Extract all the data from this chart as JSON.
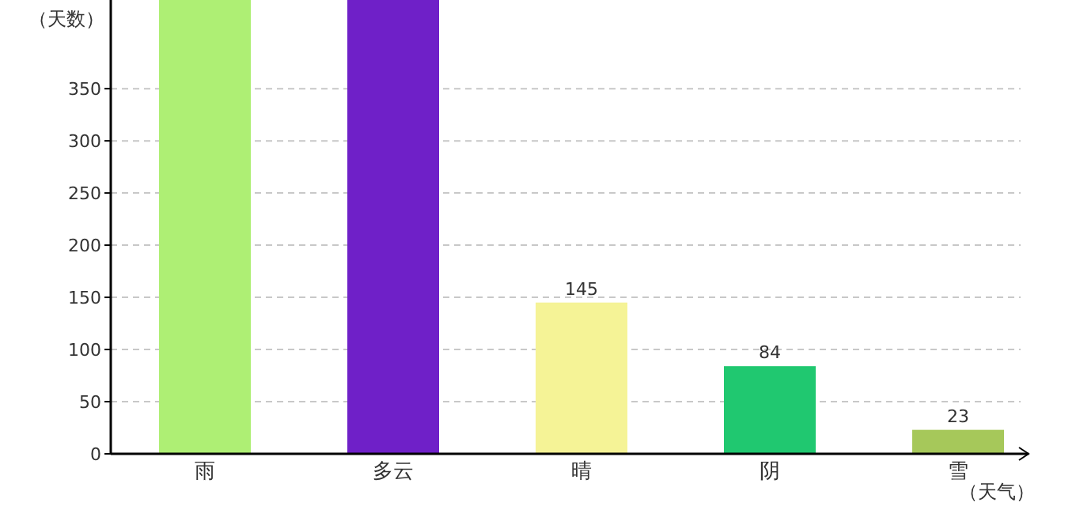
{
  "chart_data": {
    "type": "bar",
    "xlabel": "（天气）",
    "ylabel": "（天数）",
    "categories": [
      "雨",
      "多云",
      "晴",
      "阴",
      "雪"
    ],
    "values": [
      435,
      435,
      145,
      84,
      23
    ],
    "colors": [
      "#aeef74",
      "#6f20c8",
      "#f5f396",
      "#20c870",
      "#a6c85a"
    ],
    "value_labels": [
      null,
      null,
      "145",
      "84",
      "23"
    ],
    "ylim": [
      0,
      435
    ],
    "yticks": [
      0,
      50,
      100,
      150,
      200,
      250,
      300,
      350
    ],
    "grid": "y"
  }
}
